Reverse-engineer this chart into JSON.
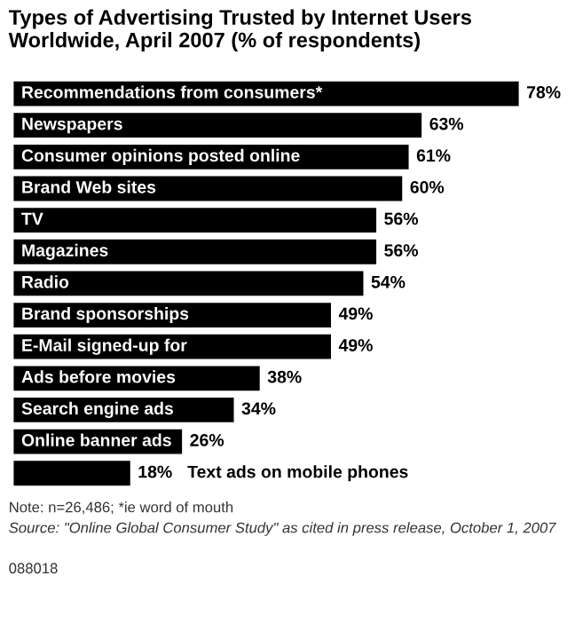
{
  "chart_data": {
    "type": "bar",
    "orientation": "horizontal",
    "title": "Types of Advertising Trusted by Internet Users Worldwide, April 2007 (% of respondents)",
    "categories": [
      "Recommendations from consumers*",
      "Newspapers",
      "Consumer opinions posted online",
      "Brand Web sites",
      "TV",
      "Magazines",
      "Radio",
      "Brand sponsorships",
      "E-Mail signed-up for",
      "Ads before movies",
      "Search engine ads",
      "Online banner ads",
      "Text ads on mobile phones"
    ],
    "values": [
      78,
      63,
      61,
      60,
      56,
      56,
      54,
      49,
      49,
      38,
      34,
      26,
      18
    ],
    "color": "#000000",
    "value_labels": [
      "78%",
      "63%",
      "61%",
      "60%",
      "56%",
      "56%",
      "54%",
      "49%",
      "49%",
      "38%",
      "34%",
      "26%",
      "18%"
    ],
    "annotations": [
      "Note: n=26,486; *ie word of mouth",
      "Source: \"Online Global Consumer Study\" as cited in press release, October 1, 2007",
      "088018"
    ]
  }
}
